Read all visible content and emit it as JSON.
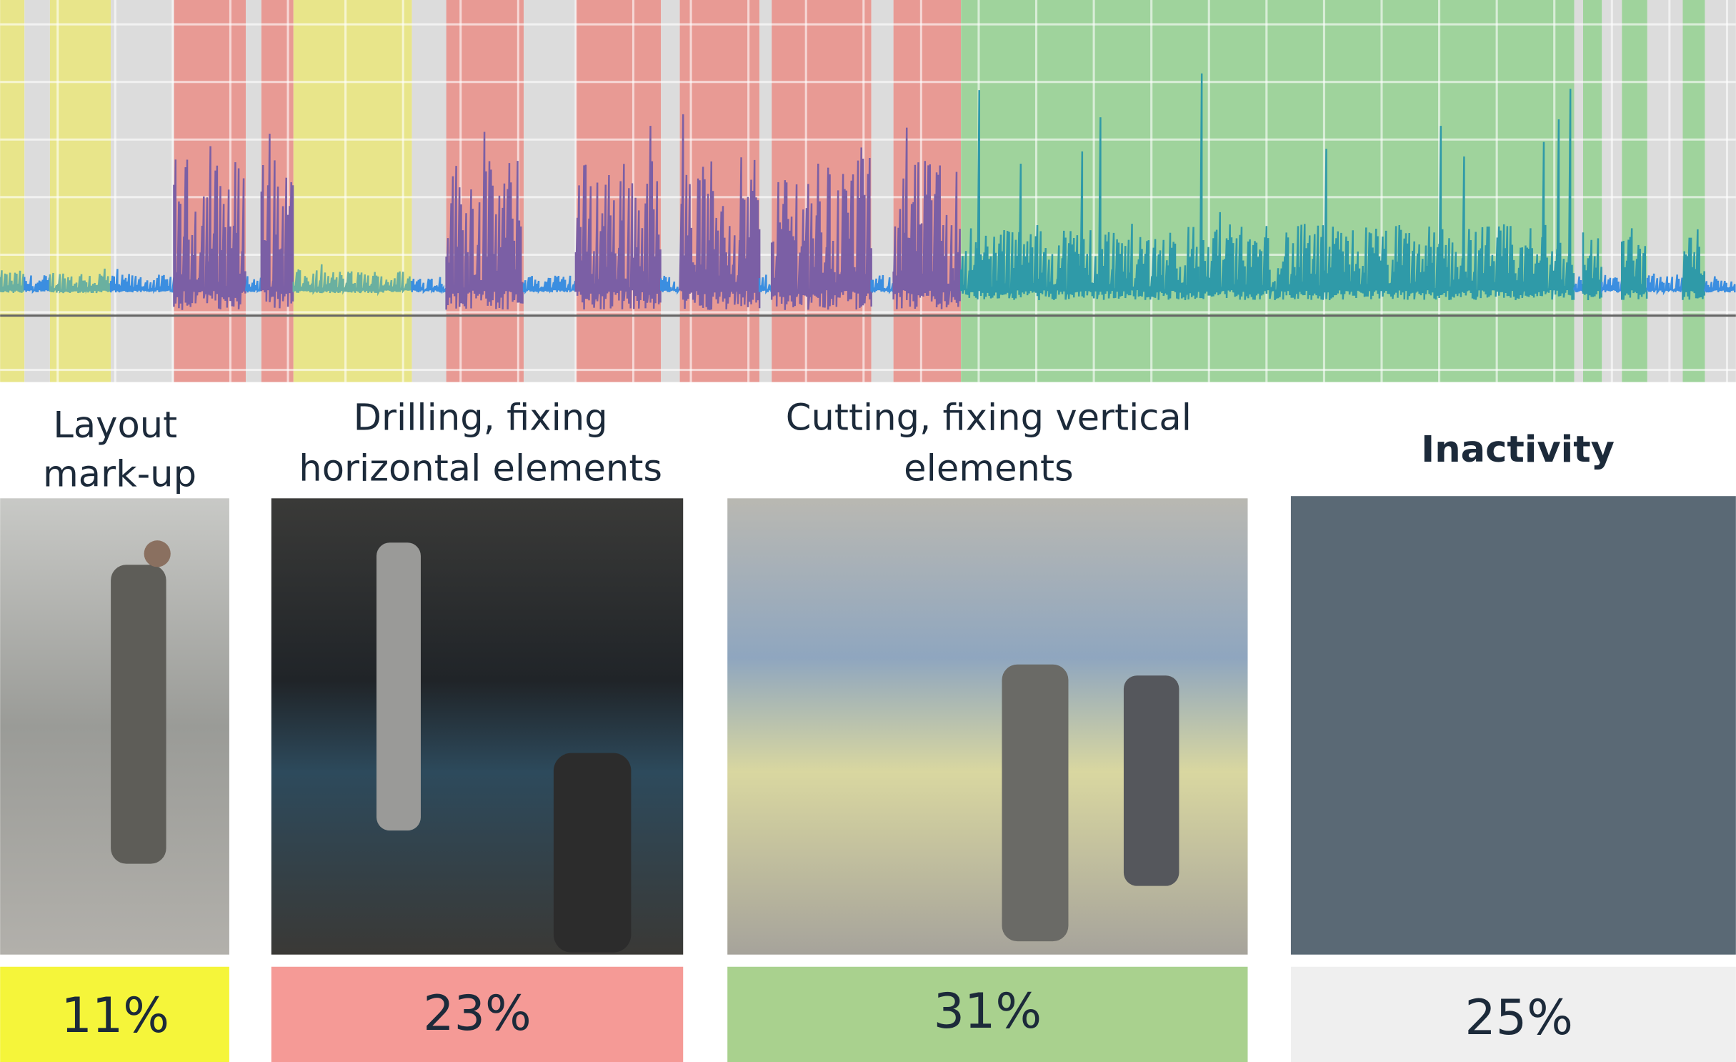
{
  "activities": [
    {
      "label": [
        "Layout",
        "mark-up"
      ],
      "share": "11%"
    },
    {
      "label": [
        "Drilling, fixing",
        "horizontal  elements"
      ],
      "share": "23%"
    },
    {
      "label": [
        "Cutting, fixing vertical",
        "elements"
      ],
      "share": "31%"
    },
    {
      "label": [
        "Inactivity"
      ],
      "share": "25%"
    }
  ]
}
